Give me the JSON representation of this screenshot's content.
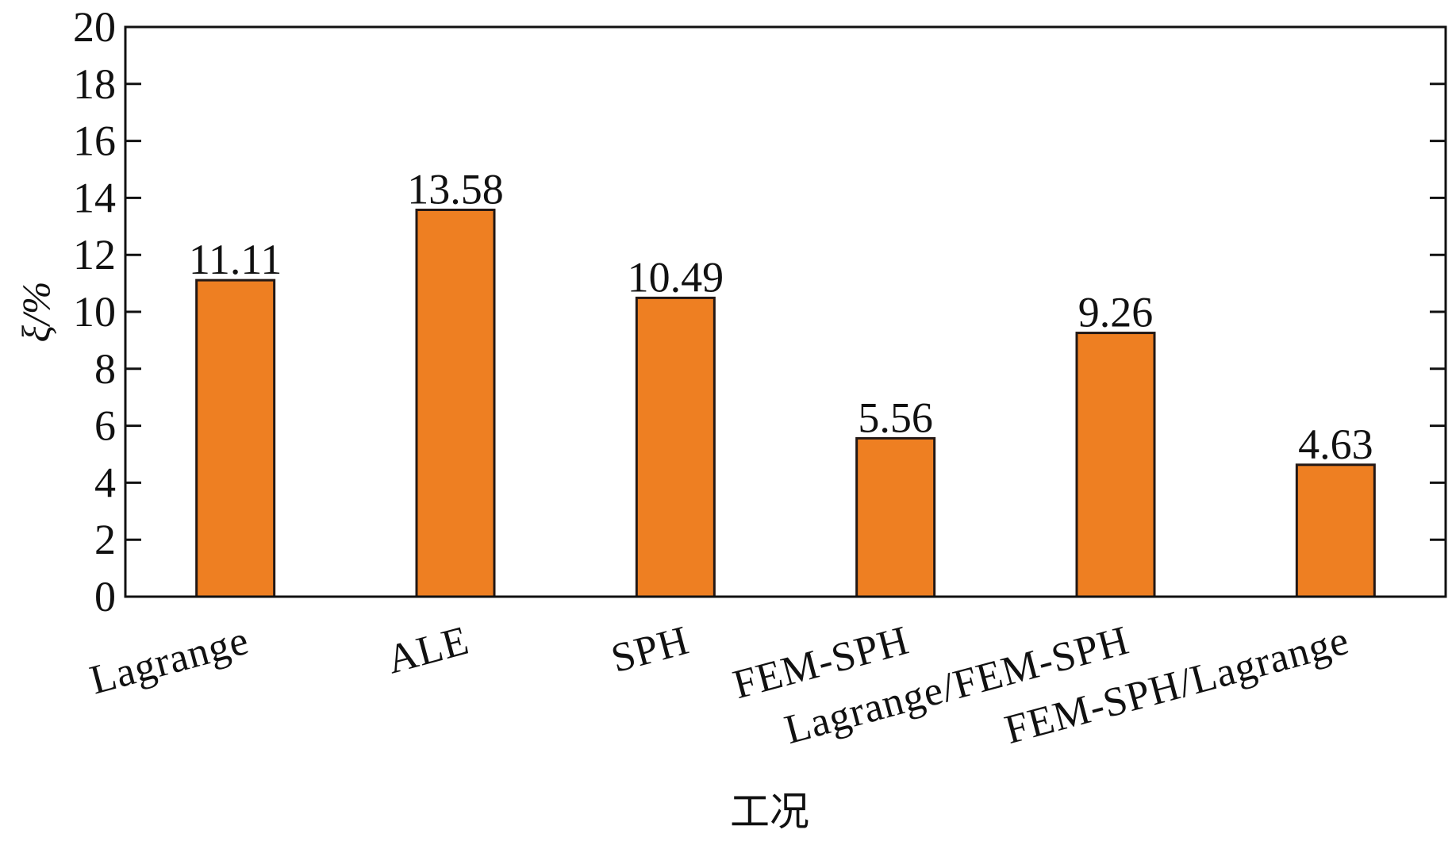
{
  "chart_data": {
    "type": "bar",
    "categories": [
      "Lagrange",
      "ALE",
      "SPH",
      "FEM-SPH",
      "Lagrange/FEM-SPH",
      "FEM-SPH/Lagrange"
    ],
    "values": [
      11.11,
      13.58,
      10.49,
      5.56,
      9.26,
      4.63
    ],
    "value_labels": [
      "11.11",
      "13.58",
      "10.49",
      "5.56",
      "9.26",
      "4.63"
    ],
    "xlabel": "工况",
    "ylabel": "ξ/%",
    "ylim": [
      0,
      20
    ],
    "yticks": [
      0,
      2,
      4,
      6,
      8,
      10,
      12,
      14,
      16,
      18,
      20
    ],
    "bar_color": "#EE7F22",
    "bar_edge_color": "#231815",
    "grid": false,
    "legend": "none"
  }
}
